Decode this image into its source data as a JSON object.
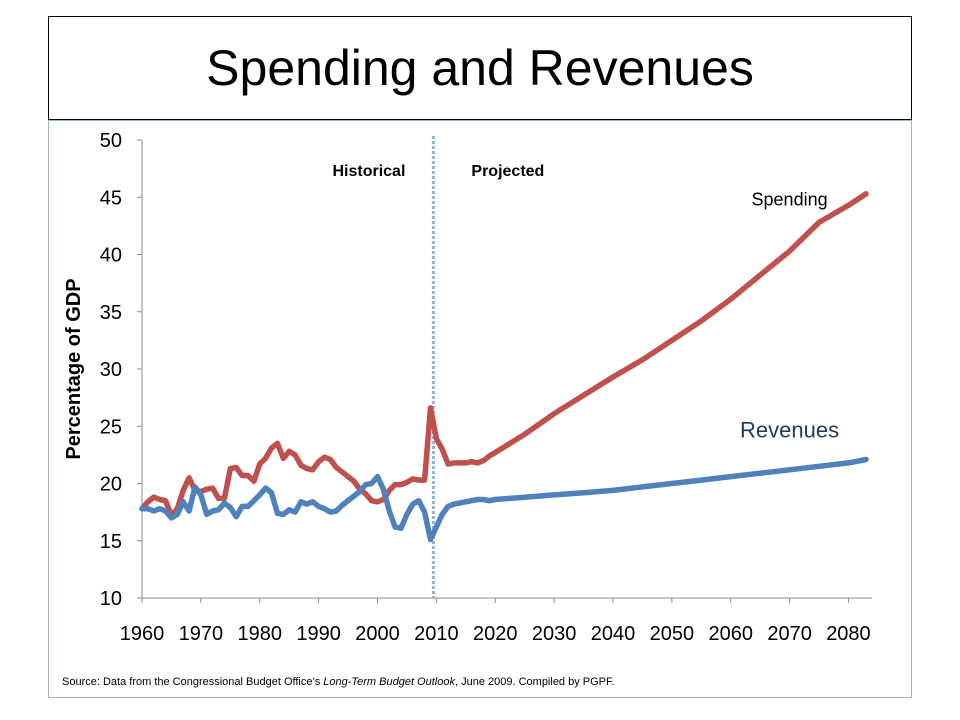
{
  "title": "Spending and Revenues",
  "source": {
    "prefix": "Source: Data from the Congressional Budget Office’s ",
    "italic": "Long-Term Budget Outlook",
    "suffix": ", June 2009. Compiled by PGPF."
  },
  "chart_data": {
    "type": "line",
    "ylabel": "Percentage of GDP",
    "xlabel": "",
    "ylim": [
      10,
      50
    ],
    "xlim": [
      1960,
      2084
    ],
    "y_ticks": [
      10,
      15,
      20,
      25,
      30,
      35,
      40,
      45,
      50
    ],
    "x_ticks": [
      1960,
      1970,
      1980,
      1990,
      2000,
      2010,
      2020,
      2030,
      2040,
      2050,
      2060,
      2070,
      2080
    ],
    "grid": false,
    "divider": {
      "x": 2009.5,
      "left_label": "Historical",
      "right_label": "Projected"
    },
    "series": [
      {
        "name": "Spending",
        "color": "#c0504d",
        "x": [
          1960,
          1961,
          1962,
          1963,
          1964,
          1965,
          1966,
          1967,
          1968,
          1969,
          1970,
          1971,
          1972,
          1973,
          1974,
          1975,
          1976,
          1977,
          1978,
          1979,
          1980,
          1981,
          1982,
          1983,
          1984,
          1985,
          1986,
          1987,
          1988,
          1989,
          1990,
          1991,
          1992,
          1993,
          1994,
          1995,
          1996,
          1997,
          1998,
          1999,
          2000,
          2001,
          2002,
          2003,
          2004,
          2005,
          2006,
          2007,
          2008,
          2009,
          2010,
          2011,
          2012,
          2013,
          2014,
          2015,
          2016,
          2017,
          2018,
          2019,
          2020,
          2025,
          2030,
          2035,
          2040,
          2045,
          2050,
          2055,
          2060,
          2065,
          2070,
          2075,
          2080,
          2083
        ],
        "values": [
          17.8,
          18.4,
          18.8,
          18.6,
          18.5,
          17.2,
          17.8,
          19.4,
          20.5,
          19.4,
          19.3,
          19.5,
          19.6,
          18.7,
          18.7,
          21.3,
          21.4,
          20.7,
          20.7,
          20.2,
          21.7,
          22.2,
          23.1,
          23.5,
          22.2,
          22.8,
          22.5,
          21.6,
          21.3,
          21.2,
          21.9,
          22.3,
          22.1,
          21.4,
          21.0,
          20.6,
          20.2,
          19.5,
          19.1,
          18.5,
          18.4,
          18.6,
          19.4,
          19.9,
          19.9,
          20.1,
          20.4,
          20.3,
          20.3,
          26.6,
          23.9,
          23.0,
          21.7,
          21.8,
          21.8,
          21.8,
          21.9,
          21.8,
          22.0,
          22.4,
          22.7,
          24.3,
          26.1,
          27.7,
          29.3,
          30.8,
          32.5,
          34.2,
          36.1,
          38.2,
          40.3,
          42.8,
          44.3,
          45.3
        ]
      },
      {
        "name": "Revenues",
        "color": "#4f81bd",
        "x": [
          1960,
          1961,
          1962,
          1963,
          1964,
          1965,
          1966,
          1967,
          1968,
          1969,
          1970,
          1971,
          1972,
          1973,
          1974,
          1975,
          1976,
          1977,
          1978,
          1979,
          1980,
          1981,
          1982,
          1983,
          1984,
          1985,
          1986,
          1987,
          1988,
          1989,
          1990,
          1991,
          1992,
          1993,
          1994,
          1995,
          1996,
          1997,
          1998,
          1999,
          2000,
          2001,
          2002,
          2003,
          2004,
          2005,
          2006,
          2007,
          2008,
          2009,
          2010,
          2011,
          2012,
          2013,
          2014,
          2015,
          2016,
          2017,
          2018,
          2019,
          2020,
          2025,
          2030,
          2035,
          2040,
          2045,
          2050,
          2055,
          2060,
          2065,
          2070,
          2075,
          2080,
          2083
        ],
        "values": [
          17.8,
          17.8,
          17.6,
          17.8,
          17.6,
          17.0,
          17.3,
          18.4,
          17.6,
          19.7,
          19.0,
          17.3,
          17.6,
          17.7,
          18.3,
          17.9,
          17.1,
          18.0,
          18.0,
          18.5,
          19.0,
          19.6,
          19.2,
          17.4,
          17.3,
          17.7,
          17.5,
          18.4,
          18.2,
          18.4,
          18.0,
          17.8,
          17.5,
          17.6,
          18.1,
          18.5,
          18.9,
          19.3,
          19.9,
          20.0,
          20.6,
          19.5,
          17.6,
          16.2,
          16.1,
          17.3,
          18.2,
          18.5,
          17.5,
          15.1,
          16.2,
          17.3,
          18.0,
          18.2,
          18.3,
          18.4,
          18.5,
          18.6,
          18.6,
          18.5,
          18.6,
          18.8,
          19.0,
          19.2,
          19.4,
          19.7,
          20.0,
          20.3,
          20.6,
          20.9,
          21.2,
          21.5,
          21.8,
          22.1
        ]
      }
    ]
  }
}
